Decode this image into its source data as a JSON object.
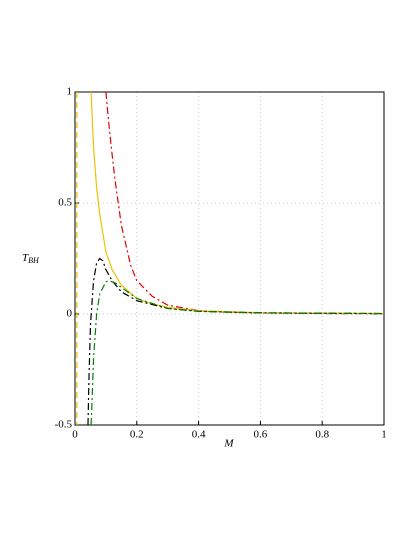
{
  "chart_data": {
    "type": "line",
    "xlabel": "M",
    "ylabel": "T",
    "ylabel_sub": "BH",
    "xlim": [
      0,
      1
    ],
    "ylim": [
      -0.5,
      1
    ],
    "xticks": [
      0,
      0.2,
      0.4,
      0.6,
      0.8,
      1
    ],
    "yticks": [
      -0.5,
      0,
      0.5,
      1
    ],
    "grid": true,
    "series": [
      {
        "color": "#e00000",
        "dash": "dashdot",
        "x": [
          0.1,
          0.11,
          0.12,
          0.13,
          0.15,
          0.18,
          0.2,
          0.25,
          0.3,
          0.4,
          0.5,
          0.6,
          0.8,
          1
        ],
        "values": [
          1.0,
          0.85,
          0.72,
          0.6,
          0.4,
          0.22,
          0.15,
          0.08,
          0.04,
          0.015,
          0.008,
          0.005,
          0.002,
          0.001
        ]
      },
      {
        "color": "#f0c000",
        "dash": "solid",
        "x": [
          0.052,
          0.06,
          0.07,
          0.08,
          0.1,
          0.12,
          0.15,
          0.2,
          0.25,
          0.3,
          0.4,
          0.6,
          1
        ],
        "values": [
          1.0,
          0.75,
          0.57,
          0.45,
          0.28,
          0.2,
          0.13,
          0.07,
          0.045,
          0.03,
          0.015,
          0.006,
          0.002
        ]
      },
      {
        "color": "#f0c000",
        "dash": "dashed",
        "x": [
          0.006,
          0.006
        ],
        "values": [
          1.0,
          -0.5
        ]
      },
      {
        "color": "#000000",
        "dash": "dashdot",
        "x": [
          0.042,
          0.045,
          0.05,
          0.06,
          0.07,
          0.08,
          0.09,
          0.1,
          0.12,
          0.15,
          0.2,
          0.3,
          0.4,
          0.6,
          1
        ],
        "values": [
          -0.5,
          -0.3,
          -0.05,
          0.15,
          0.23,
          0.25,
          0.24,
          0.2,
          0.15,
          0.1,
          0.06,
          0.025,
          0.012,
          0.005,
          0.002
        ]
      },
      {
        "color": "#008000",
        "dash": "dashdot",
        "x": [
          0.052,
          0.055,
          0.06,
          0.07,
          0.08,
          0.1,
          0.11,
          0.13,
          0.15,
          0.2,
          0.3,
          0.4,
          0.6,
          1
        ],
        "values": [
          -0.5,
          -0.4,
          -0.2,
          0.0,
          0.09,
          0.145,
          0.15,
          0.14,
          0.12,
          0.07,
          0.025,
          0.012,
          0.005,
          0.002
        ]
      }
    ]
  }
}
